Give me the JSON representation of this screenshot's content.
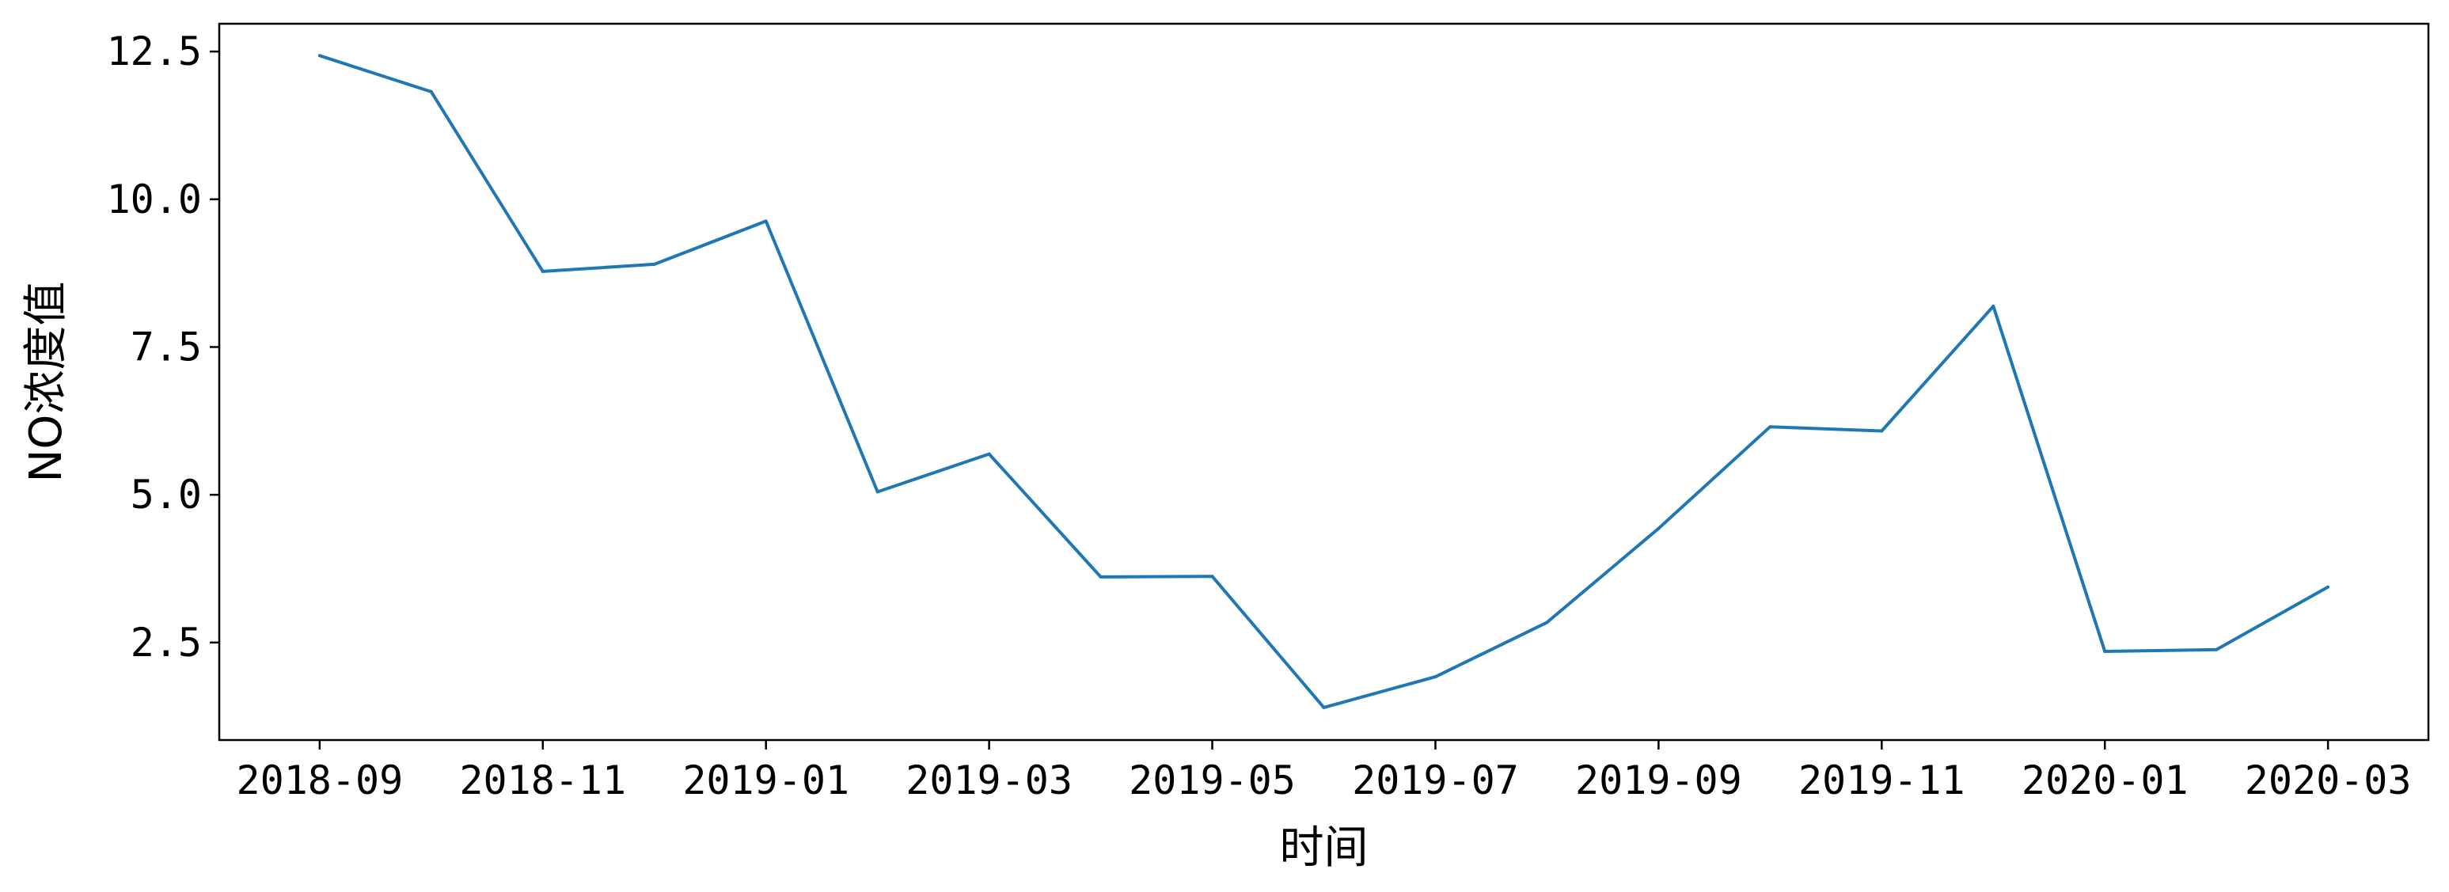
{
  "chart_data": {
    "type": "line",
    "title": "",
    "xlabel": "时间",
    "ylabel": "NO浓度值",
    "x": [
      "2018-09",
      "2018-10",
      "2018-11",
      "2018-12",
      "2019-01",
      "2019-02",
      "2019-03",
      "2019-04",
      "2019-05",
      "2019-06",
      "2019-07",
      "2019-08",
      "2019-09",
      "2019-10",
      "2019-11",
      "2019-12",
      "2020-01",
      "2020-02",
      "2020-03"
    ],
    "series": [
      {
        "values": [
          12.43,
          11.82,
          8.78,
          8.9,
          9.63,
          5.05,
          5.69,
          3.61,
          3.62,
          1.4,
          1.92,
          2.84,
          4.43,
          6.15,
          6.08,
          8.19,
          2.35,
          2.38,
          3.44
        ]
      }
    ],
    "xticks": [
      "2018-09",
      "2018-11",
      "2019-01",
      "2019-03",
      "2019-05",
      "2019-07",
      "2019-09",
      "2019-11",
      "2020-01",
      "2020-03"
    ],
    "yticks": [
      2.5,
      5.0,
      7.5,
      10.0,
      12.5
    ],
    "ytick_labels": [
      "2.5",
      "5.0",
      "7.5",
      "10.0",
      "12.5"
    ],
    "ylim": [
      0.85,
      12.97
    ],
    "grid": false,
    "line_color": "#1f77b4"
  }
}
